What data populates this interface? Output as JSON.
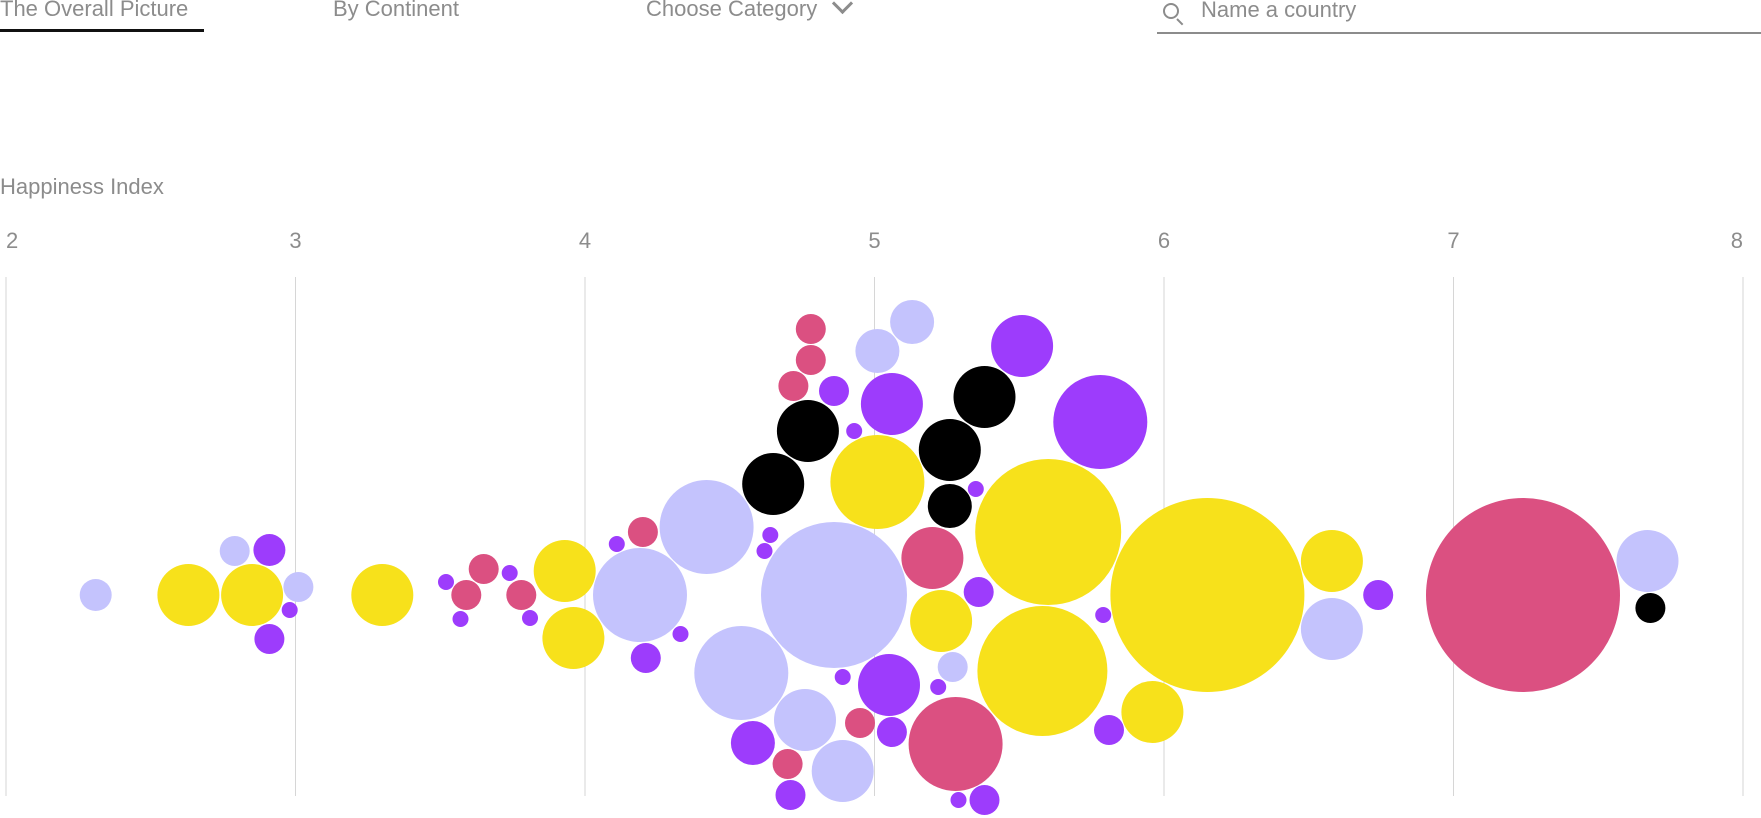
{
  "tabs": [
    {
      "label": "The Overall Picture",
      "active": true
    },
    {
      "label": "By Continent"
    },
    {
      "label": "Choose Category"
    }
  ],
  "search": {
    "placeholder": "Name a country",
    "value": ""
  },
  "colors": {
    "yellow": "#f7e11b",
    "lavender": "#c4c3fd",
    "purple": "#9d3cfc",
    "pink": "#db5081",
    "black": "#000000"
  },
  "chart_data": {
    "type": "scatter",
    "title": "",
    "xlabel": "Happiness Index",
    "ylabel": "",
    "xlim": [
      2,
      8
    ],
    "xticks": [
      "2",
      "3",
      "4",
      "5",
      "6",
      "7",
      "8"
    ],
    "grid": true,
    "points": [
      {
        "x": 2.31,
        "r": 16,
        "c": "lavender"
      },
      {
        "x": 2.63,
        "r": 31,
        "c": "yellow"
      },
      {
        "x": 2.79,
        "r": 15,
        "c": "lavender"
      },
      {
        "x": 2.85,
        "r": 31,
        "c": "yellow"
      },
      {
        "x": 2.91,
        "r": 15,
        "c": "purple"
      },
      {
        "x": 2.91,
        "r": 16,
        "c": "purple"
      },
      {
        "x": 2.98,
        "r": 8,
        "c": "purple"
      },
      {
        "x": 3.01,
        "r": 15,
        "c": "lavender"
      },
      {
        "x": 3.3,
        "r": 31,
        "c": "yellow"
      },
      {
        "x": 3.52,
        "r": 8,
        "c": "purple"
      },
      {
        "x": 3.57,
        "r": 8,
        "c": "purple"
      },
      {
        "x": 3.59,
        "r": 15,
        "c": "pink"
      },
      {
        "x": 3.65,
        "r": 15,
        "c": "pink"
      },
      {
        "x": 3.74,
        "r": 8,
        "c": "purple"
      },
      {
        "x": 3.78,
        "r": 15,
        "c": "pink"
      },
      {
        "x": 3.81,
        "r": 8,
        "c": "purple"
      },
      {
        "x": 3.93,
        "r": 31,
        "c": "yellow"
      },
      {
        "x": 3.96,
        "r": 31,
        "c": "yellow"
      },
      {
        "x": 4.11,
        "r": 8,
        "c": "purple"
      },
      {
        "x": 4.19,
        "r": 47,
        "c": "lavender"
      },
      {
        "x": 4.2,
        "r": 15,
        "c": "pink"
      },
      {
        "x": 4.21,
        "r": 15,
        "c": "purple"
      },
      {
        "x": 4.33,
        "r": 8,
        "c": "purple"
      },
      {
        "x": 4.42,
        "r": 47,
        "c": "lavender"
      },
      {
        "x": 4.54,
        "r": 47,
        "c": "lavender"
      },
      {
        "x": 4.58,
        "r": 22,
        "c": "purple"
      },
      {
        "x": 4.62,
        "r": 8,
        "c": "purple"
      },
      {
        "x": 4.64,
        "r": 8,
        "c": "purple"
      },
      {
        "x": 4.65,
        "r": 31,
        "c": "black"
      },
      {
        "x": 4.7,
        "r": 15,
        "c": "pink"
      },
      {
        "x": 4.71,
        "r": 15,
        "c": "purple"
      },
      {
        "x": 4.72,
        "r": 15,
        "c": "pink"
      },
      {
        "x": 4.76,
        "r": 31,
        "c": "lavender"
      },
      {
        "x": 4.77,
        "r": 31,
        "c": "black"
      },
      {
        "x": 4.78,
        "r": 15,
        "c": "pink"
      },
      {
        "x": 4.78,
        "r": 15,
        "c": "pink"
      },
      {
        "x": 4.86,
        "r": 15,
        "c": "purple"
      },
      {
        "x": 4.86,
        "r": 73,
        "c": "lavender"
      },
      {
        "x": 4.89,
        "r": 31,
        "c": "lavender"
      },
      {
        "x": 4.89,
        "r": 8,
        "c": "purple"
      },
      {
        "x": 4.93,
        "r": 8,
        "c": "purple"
      },
      {
        "x": 4.95,
        "r": 15,
        "c": "pink"
      },
      {
        "x": 5.01,
        "r": 47,
        "c": "yellow"
      },
      {
        "x": 5.01,
        "r": 22,
        "c": "lavender"
      },
      {
        "x": 5.05,
        "r": 31,
        "c": "purple"
      },
      {
        "x": 5.06,
        "r": 15,
        "c": "purple"
      },
      {
        "x": 5.06,
        "r": 31,
        "c": "purple"
      },
      {
        "x": 5.13,
        "r": 22,
        "c": "lavender"
      },
      {
        "x": 5.2,
        "r": 31,
        "c": "pink"
      },
      {
        "x": 5.22,
        "r": 8,
        "c": "purple"
      },
      {
        "x": 5.23,
        "r": 31,
        "c": "yellow"
      },
      {
        "x": 5.26,
        "r": 22,
        "c": "black"
      },
      {
        "x": 5.26,
        "r": 31,
        "c": "black"
      },
      {
        "x": 5.27,
        "r": 15,
        "c": "lavender"
      },
      {
        "x": 5.28,
        "r": 47,
        "c": "pink"
      },
      {
        "x": 5.29,
        "r": 8,
        "c": "purple"
      },
      {
        "x": 5.35,
        "r": 8,
        "c": "purple"
      },
      {
        "x": 5.36,
        "r": 15,
        "c": "purple"
      },
      {
        "x": 5.38,
        "r": 31,
        "c": "black"
      },
      {
        "x": 5.38,
        "r": 15,
        "c": "purple"
      },
      {
        "x": 5.51,
        "r": 31,
        "c": "purple"
      },
      {
        "x": 5.58,
        "r": 65,
        "c": "yellow"
      },
      {
        "x": 5.6,
        "r": 73,
        "c": "yellow"
      },
      {
        "x": 5.78,
        "r": 47,
        "c": "purple"
      },
      {
        "x": 5.79,
        "r": 8,
        "c": "purple"
      },
      {
        "x": 5.81,
        "r": 15,
        "c": "purple"
      },
      {
        "x": 5.96,
        "r": 31,
        "c": "yellow"
      },
      {
        "x": 6.15,
        "r": 97,
        "c": "yellow"
      },
      {
        "x": 6.58,
        "r": 31,
        "c": "yellow"
      },
      {
        "x": 6.58,
        "r": 31,
        "c": "lavender"
      },
      {
        "x": 6.74,
        "r": 15,
        "c": "purple"
      },
      {
        "x": 7.24,
        "r": 97,
        "c": "pink"
      },
      {
        "x": 7.67,
        "r": 31,
        "c": "lavender"
      },
      {
        "x": 7.68,
        "r": 15,
        "c": "black"
      }
    ]
  }
}
